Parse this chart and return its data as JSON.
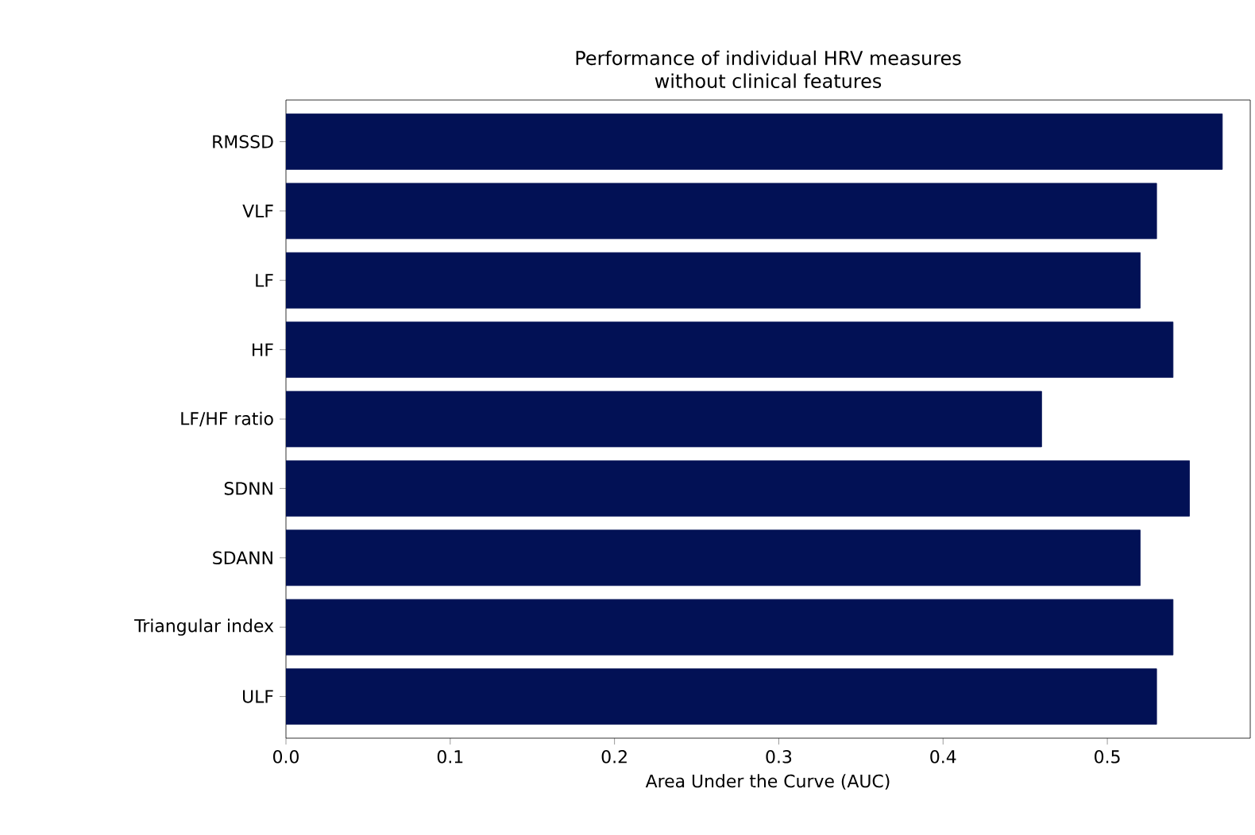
{
  "chart_data": {
    "type": "bar",
    "orientation": "horizontal",
    "title": "Performance of individual HRV measures\nwithout clinical features",
    "xlabel": "Area Under the Curve (AUC)",
    "categories": [
      "RMSSD",
      "VLF",
      "LF",
      "HF",
      "LF/HF ratio",
      "SDNN",
      "SDANN",
      "Triangular index",
      "ULF"
    ],
    "values": [
      0.57,
      0.53,
      0.52,
      0.54,
      0.46,
      0.55,
      0.52,
      0.54,
      0.53
    ],
    "color": "#021155",
    "xlim": [
      0,
      0.587
    ],
    "xticks": [
      {
        "value": 0,
        "label": "0.0"
      },
      {
        "value": 0.1,
        "label": "0.1"
      },
      {
        "value": 0.2,
        "label": "0.2"
      },
      {
        "value": 0.3,
        "label": "0.3"
      },
      {
        "value": 0.4,
        "label": "0.4"
      },
      {
        "value": 0.5,
        "label": "0.5"
      }
    ],
    "grid": false
  }
}
